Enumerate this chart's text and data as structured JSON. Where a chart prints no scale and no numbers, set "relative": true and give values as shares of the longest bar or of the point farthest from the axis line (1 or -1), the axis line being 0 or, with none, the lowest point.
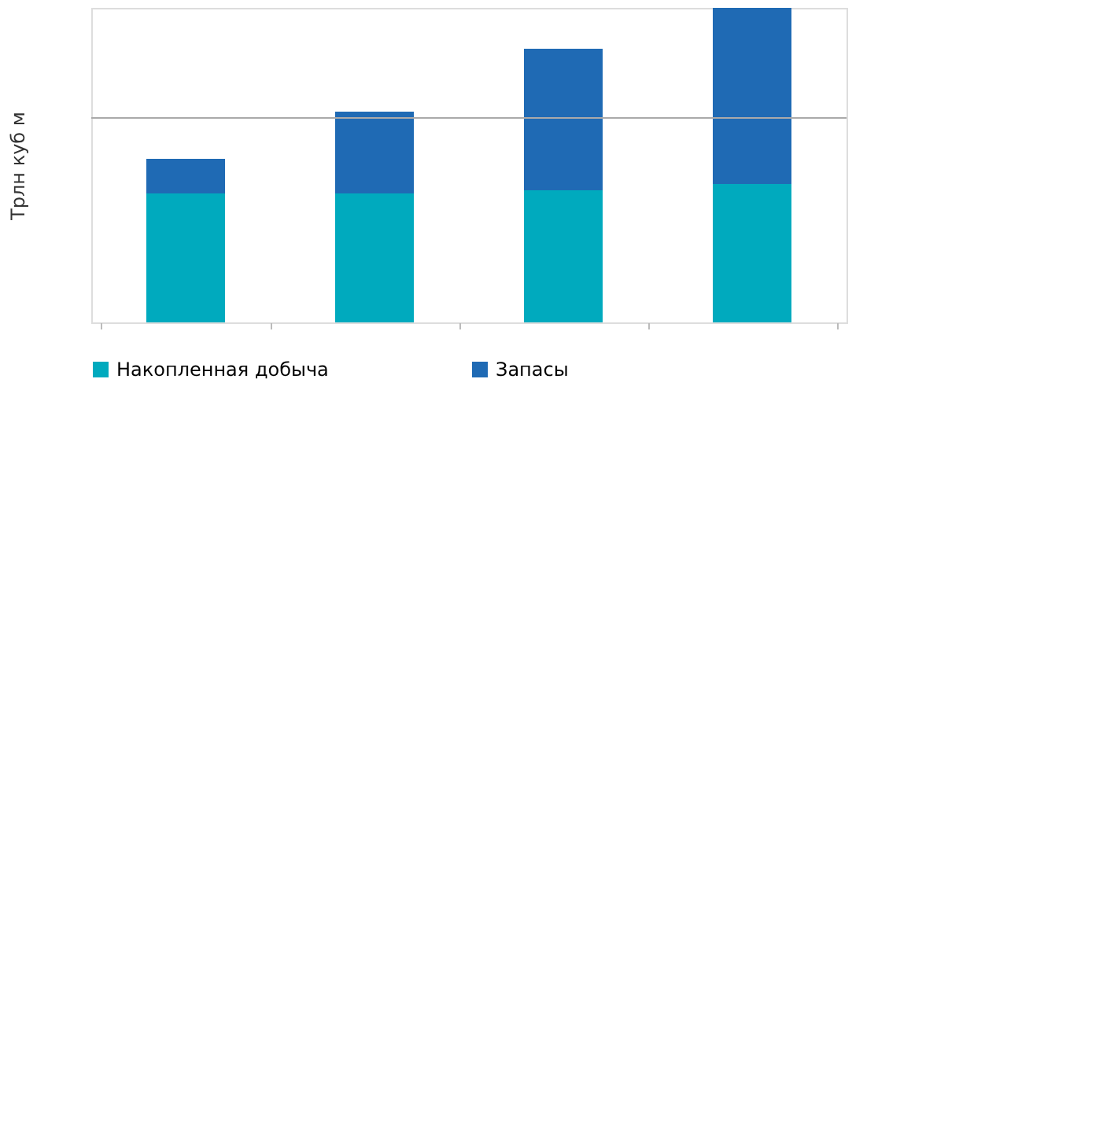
{
  "chart_data": {
    "type": "bar",
    "stacked": true,
    "relative": true,
    "ylabel": "Трлн куб м",
    "categories": [
      null,
      null,
      null,
      null
    ],
    "series": [
      {
        "name": "Накопленная добыча",
        "color": "#00aabe",
        "values": [
          0.41,
          0.41,
          0.42,
          0.44
        ]
      },
      {
        "name": "Запасы",
        "color": "#1f6ab4",
        "values": [
          0.11,
          0.26,
          0.45,
          0.56
        ]
      }
    ],
    "ref_lines": [
      {
        "axis": "y",
        "value": 0.65,
        "color": "#aaaaaa"
      }
    ],
    "legend": "bottom",
    "grid": false
  }
}
